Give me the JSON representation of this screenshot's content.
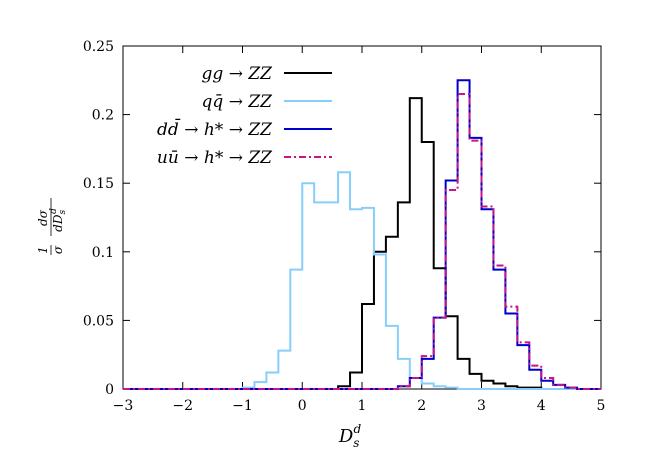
{
  "chart_data": {
    "type": "line",
    "style": "histogram-step",
    "title": "",
    "xlabel": "D_s^d",
    "xlabel_main": "D",
    "xlabel_sub": "s",
    "xlabel_sup": "d",
    "ylabel": "1/σ dσ/dD_s^d",
    "ylabel_parts": {
      "num1": "1",
      "den1": "σ",
      "num2": "dσ",
      "den2": "dD",
      "den2_sub": "s",
      "den2_sup": "d"
    },
    "xlim": [
      -3,
      5
    ],
    "ylim": [
      0,
      0.25
    ],
    "bin_width": 0.2,
    "bin_start": -3,
    "x_ticks": [
      -3,
      -2,
      -1,
      0,
      1,
      2,
      3,
      4,
      5
    ],
    "x_tick_labels": [
      "−3",
      "−2",
      "−1",
      "0",
      "1",
      "2",
      "3",
      "4",
      "5"
    ],
    "y_ticks": [
      0,
      0.05,
      0.1,
      0.15,
      0.2,
      0.25
    ],
    "y_tick_labels": [
      "0",
      "0.05",
      "0.1",
      "0.15",
      "0.2",
      "0.25"
    ],
    "grid": false,
    "legend_position": "top-left",
    "series": [
      {
        "name": "gg → ZZ",
        "color": "#000000",
        "dash": "",
        "values": [
          0,
          0,
          0,
          0,
          0,
          0,
          0,
          0,
          0,
          0,
          0,
          0,
          0,
          0,
          0,
          0,
          0,
          0,
          0.002,
          0.012,
          0.062,
          0.1,
          0.111,
          0.136,
          0.212,
          0.18,
          0.088,
          0.053,
          0.022,
          0.011,
          0.006,
          0.004,
          0.002,
          0.001,
          0.001,
          0,
          0,
          0,
          0,
          0
        ]
      },
      {
        "name": "qq̄ → ZZ",
        "color": "#87cefa",
        "dash": "",
        "values": [
          0,
          0,
          0,
          0,
          0,
          0,
          0,
          0,
          0,
          0,
          0.001,
          0.005,
          0.012,
          0.028,
          0.087,
          0.15,
          0.136,
          0.136,
          0.158,
          0.131,
          0.132,
          0.098,
          0.046,
          0.022,
          0.008,
          0.004,
          0.002,
          0.001,
          0,
          0,
          0,
          0,
          0,
          0,
          0,
          0,
          0,
          0,
          0,
          0
        ]
      },
      {
        "name": "dd̄ → h* → ZZ",
        "color": "#0000cc",
        "dash": "",
        "values": [
          0,
          0,
          0,
          0,
          0,
          0,
          0,
          0,
          0,
          0,
          0,
          0,
          0,
          0,
          0,
          0,
          0,
          0,
          0,
          0,
          0,
          0,
          0,
          0.002,
          0.008,
          0.022,
          0.052,
          0.152,
          0.225,
          0.183,
          0.131,
          0.087,
          0.055,
          0.032,
          0.014,
          0.006,
          0.003,
          0.001,
          0,
          0
        ]
      },
      {
        "name": "uū → h* → ZZ",
        "color": "#c71585",
        "dash": "7 3 2 3",
        "values": [
          0,
          0,
          0,
          0,
          0,
          0,
          0,
          0,
          0,
          0,
          0,
          0,
          0,
          0,
          0,
          0,
          0,
          0,
          0,
          0,
          0,
          0,
          0,
          0.002,
          0.008,
          0.024,
          0.052,
          0.145,
          0.215,
          0.181,
          0.133,
          0.09,
          0.06,
          0.034,
          0.017,
          0.008,
          0.003,
          0.001,
          0,
          0
        ]
      }
    ]
  }
}
